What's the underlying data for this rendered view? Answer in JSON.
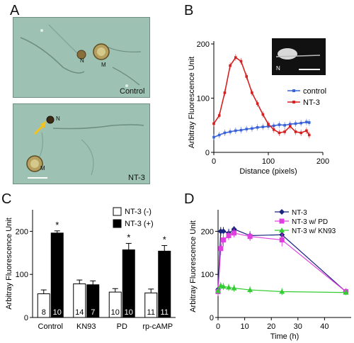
{
  "panels": {
    "A": {
      "letter": "A",
      "top_label": "Control",
      "bottom_label": "NT-3",
      "cell_labels": [
        "N",
        "M",
        "N",
        "M"
      ]
    },
    "B": {
      "letter": "B",
      "inset_label": "N"
    },
    "C": {
      "letter": "C"
    },
    "D": {
      "letter": "D"
    }
  },
  "colors": {
    "control": "#3a63d8",
    "nt3": "#d42020",
    "nt3_d": "#1a237e",
    "pd": "#e040e0",
    "kn93": "#33cc33",
    "micro_bg": "#9bbfb1"
  },
  "chart_data": [
    {
      "id": "B",
      "type": "line",
      "xlabel": "Distance (pixels)",
      "ylabel": "Arbitray Fluorescence Unit",
      "xlim": [
        0,
        200
      ],
      "ylim": [
        0,
        200
      ],
      "xticks": [
        "0",
        "100",
        "200"
      ],
      "yticks": [
        "0",
        "100",
        "200"
      ],
      "legend_position": "right",
      "series": [
        {
          "name": "control",
          "x": [
            0,
            10,
            20,
            30,
            40,
            50,
            60,
            70,
            80,
            90,
            100,
            110,
            120,
            130,
            140,
            150,
            160,
            170,
            175
          ],
          "y": [
            28,
            32,
            36,
            38,
            40,
            41,
            43,
            44,
            46,
            47,
            48,
            49,
            51,
            50,
            52,
            53,
            54,
            56,
            55
          ]
        },
        {
          "name": "NT-3",
          "x": [
            0,
            10,
            20,
            30,
            40,
            50,
            60,
            70,
            80,
            90,
            100,
            110,
            120,
            130,
            140,
            150,
            160,
            170,
            175
          ],
          "y": [
            53,
            68,
            110,
            160,
            175,
            168,
            140,
            110,
            90,
            70,
            52,
            42,
            36,
            38,
            48,
            38,
            36,
            40,
            32
          ]
        }
      ]
    },
    {
      "id": "C",
      "type": "bar",
      "categories": [
        "Control",
        "KN93",
        "PD",
        "rp-cAMP"
      ],
      "ylabel": "Arbitray Fluorescence Unit",
      "ylim": [
        0,
        250
      ],
      "yticks": [
        "0",
        "100",
        "200"
      ],
      "legend_position": "top-right",
      "significance": [
        "*",
        "",
        "*",
        "*"
      ],
      "series": [
        {
          "name": "NT-3 (-)",
          "values": [
            55,
            78,
            59,
            57
          ],
          "errors": [
            9,
            9,
            8,
            9
          ],
          "n": [
            "8",
            "14",
            "10",
            "11"
          ]
        },
        {
          "name": "NT-3 (+)",
          "values": [
            196,
            76,
            157,
            154
          ],
          "errors": [
            5,
            9,
            15,
            13
          ],
          "n": [
            "10",
            "7",
            "10",
            "11"
          ]
        }
      ]
    },
    {
      "id": "D",
      "type": "line",
      "xlabel": "Time (h)",
      "ylabel": "Arbitray Fluorescence Unit",
      "xlim": [
        0,
        50
      ],
      "ylim": [
        0,
        250
      ],
      "xticks": [
        "0",
        "10",
        "20",
        "30",
        "40"
      ],
      "yticks": [
        "0",
        "100",
        "200"
      ],
      "legend_position": "top-right",
      "series": [
        {
          "name": "NT-3",
          "x": [
            0,
            1,
            2,
            4,
            6,
            12,
            24,
            48
          ],
          "y": [
            65,
            200,
            200,
            196,
            205,
            190,
            192,
            60
          ],
          "errors": [
            10,
            10,
            10,
            10,
            7,
            10,
            10,
            7
          ]
        },
        {
          "name": "NT-3 w/ PD",
          "x": [
            0,
            1,
            2,
            4,
            6,
            12,
            24,
            48
          ],
          "y": [
            60,
            160,
            180,
            190,
            196,
            188,
            180,
            60
          ],
          "errors": [
            10,
            15,
            15,
            10,
            10,
            10,
            15,
            8
          ]
        },
        {
          "name": "NT-3 w/ KN93",
          "x": [
            0,
            1,
            2,
            4,
            6,
            12,
            24,
            48
          ],
          "y": [
            62,
            74,
            72,
            70,
            68,
            64,
            60,
            58
          ],
          "errors": [
            8,
            8,
            8,
            8,
            8,
            8,
            8,
            6
          ]
        }
      ]
    }
  ]
}
